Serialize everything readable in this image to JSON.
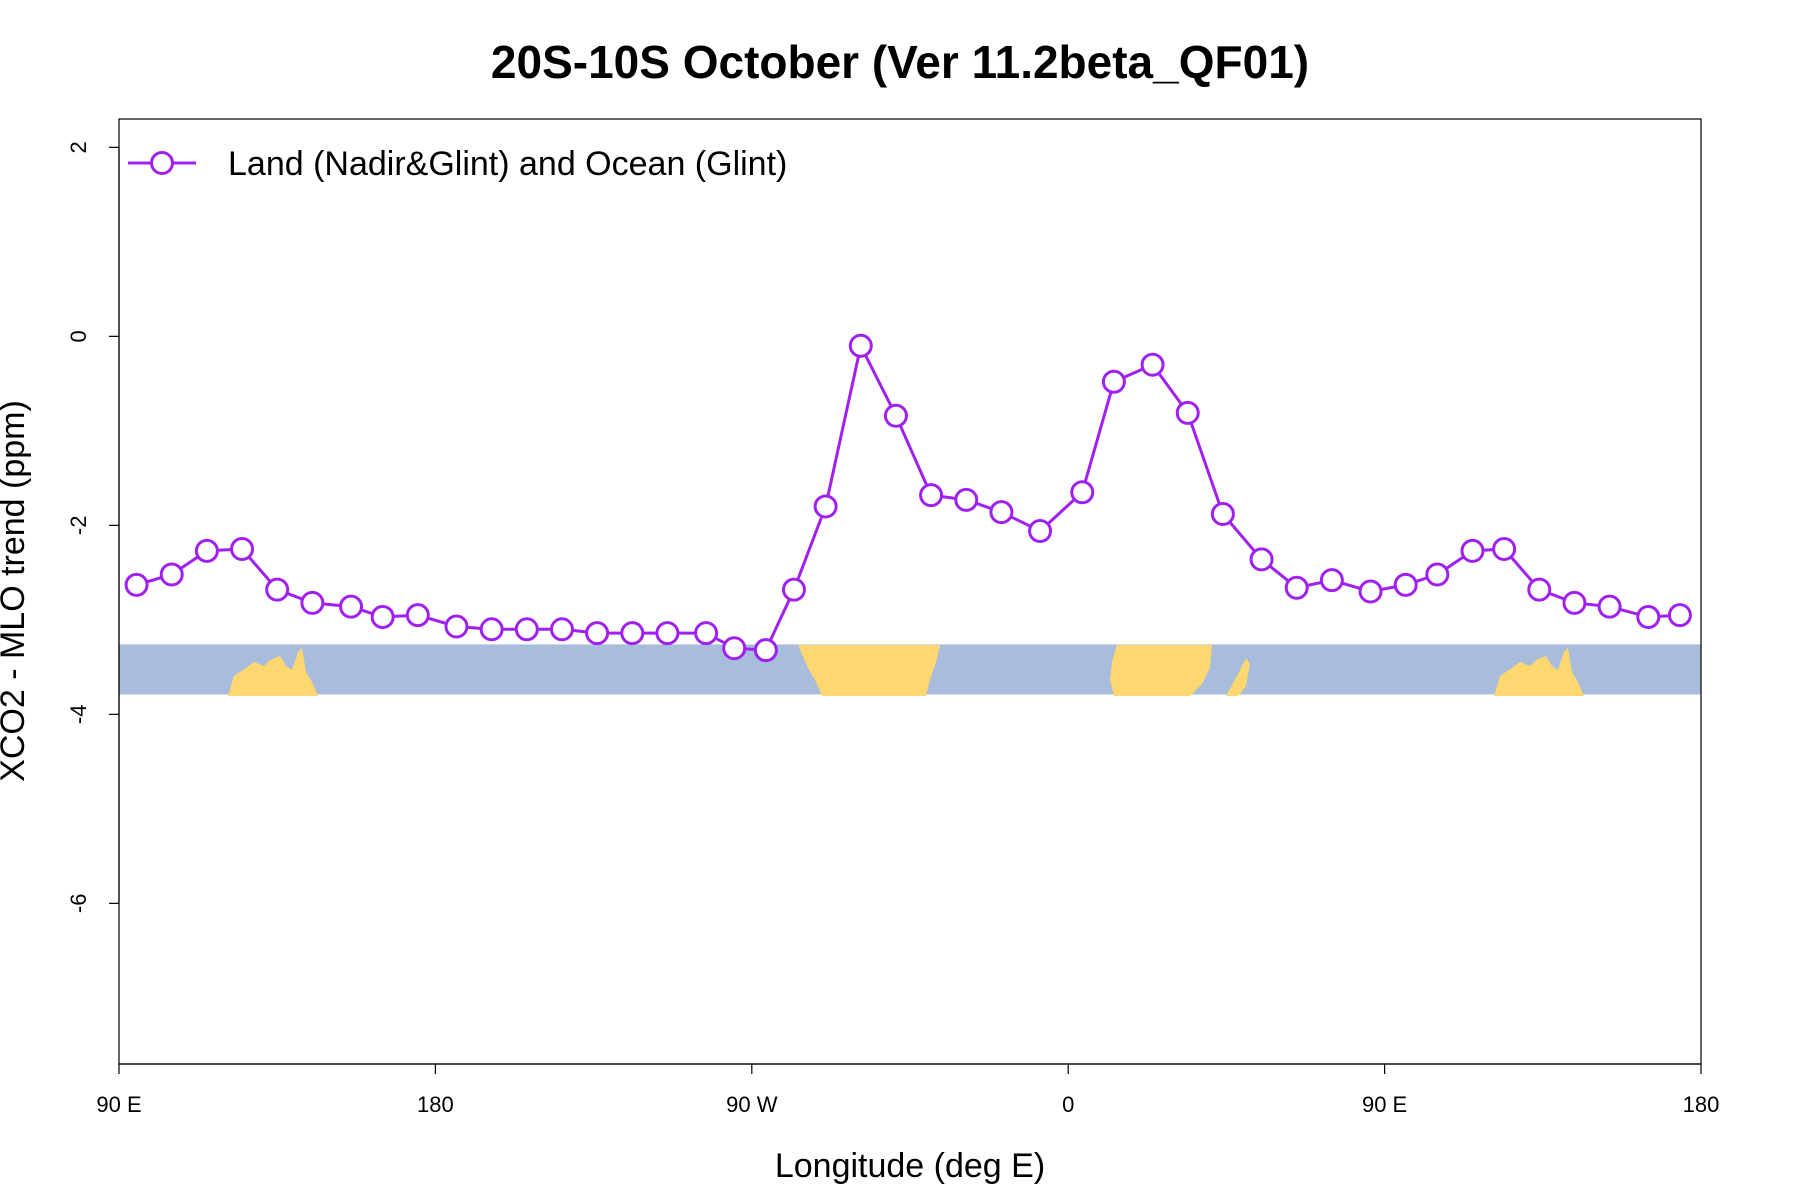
{
  "chart_data": {
    "type": "line",
    "title": "20S-10S October (Ver 11.2beta_QF01)",
    "xlabel": "Longitude (deg E)",
    "ylabel": "XCO2 - MLO trend (ppm)",
    "xlim": [
      90,
      540
    ],
    "ylim": [
      -7.7,
      2.3
    ],
    "x_ticks": [
      {
        "value": 90,
        "label": "90 E"
      },
      {
        "value": 180,
        "label": "180"
      },
      {
        "value": 270,
        "label": "90 W"
      },
      {
        "value": 360,
        "label": "0"
      },
      {
        "value": 450,
        "label": "90 E"
      },
      {
        "value": 540,
        "label": "180"
      }
    ],
    "y_ticks": [
      {
        "value": 2,
        "label": "2"
      },
      {
        "value": 0,
        "label": "0"
      },
      {
        "value": -2,
        "label": "-2"
      },
      {
        "value": -4,
        "label": "-4"
      },
      {
        "value": -6,
        "label": "-6"
      }
    ],
    "grid": false,
    "legend_position": "top-left",
    "series": [
      {
        "name": "Land (Nadir&Glint) and Ocean (Glint)",
        "color": "#a020f0",
        "marker": "open-circle",
        "x": [
          95,
          105,
          115,
          125,
          135,
          145,
          156,
          165,
          175,
          186,
          196,
          206,
          216,
          226,
          236,
          246,
          257,
          265,
          274,
          282,
          291,
          301,
          311,
          321,
          331,
          341,
          352,
          364,
          373,
          384,
          394,
          404,
          415,
          425,
          435,
          446,
          456,
          465,
          475,
          484,
          494,
          504,
          514,
          525,
          534
        ],
        "y": [
          -2.63,
          -2.52,
          -2.27,
          -2.25,
          -2.68,
          -2.82,
          -2.86,
          -2.97,
          -2.95,
          -3.07,
          -3.1,
          -3.1,
          -3.1,
          -3.14,
          -3.14,
          -3.14,
          -3.14,
          -3.3,
          -3.32,
          -2.68,
          -1.8,
          -0.1,
          -0.84,
          -1.68,
          -1.73,
          -1.86,
          -2.06,
          -1.65,
          -0.48,
          -0.3,
          -0.81,
          -1.88,
          -2.36,
          -2.66,
          -2.58,
          -2.7,
          -2.63,
          -2.52,
          -2.27,
          -2.25,
          -2.68,
          -2.82,
          -2.86,
          -2.97,
          -2.95
        ]
      }
    ],
    "map_strip": {
      "y_range": [
        -3.26,
        -3.79
      ],
      "ocean_color": "#a8bcdc",
      "land_color": "#ffd770"
    }
  }
}
